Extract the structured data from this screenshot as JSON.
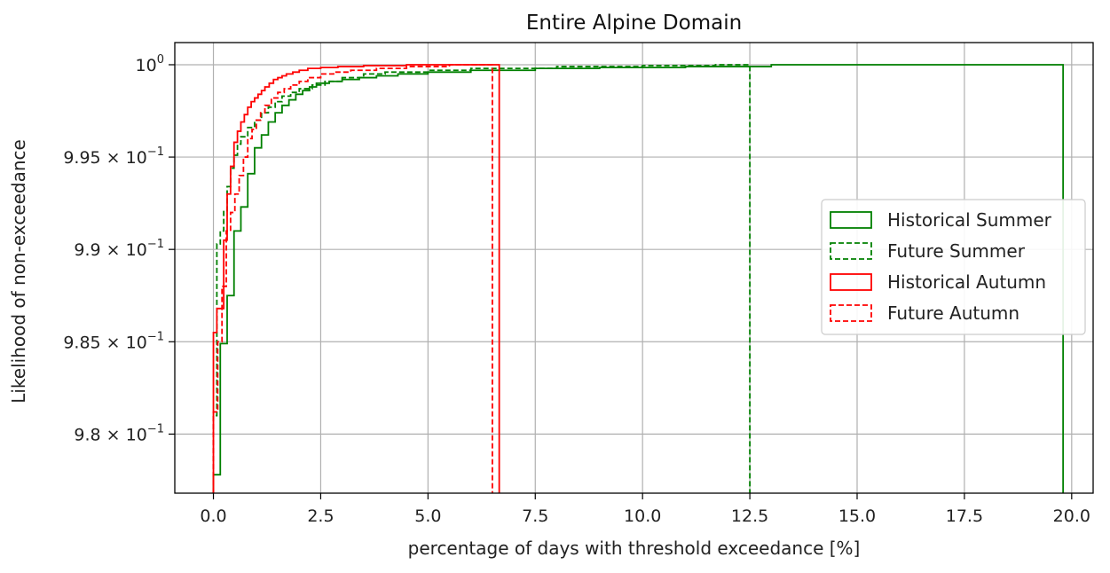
{
  "chart_data": {
    "type": "line",
    "subtype": "step-cdf-histogram",
    "title": "Entire Alpine Domain",
    "xlabel": "percentage of days with threshold exceedance [%]",
    "ylabel": "Likelihood of non-exceedance",
    "xlim": [
      -0.9,
      20.5
    ],
    "ylim": [
      0.9768,
      1.0012
    ],
    "x_ticks": [
      0,
      2.5,
      5,
      7.5,
      10,
      12.5,
      15,
      17.5,
      20
    ],
    "x_tick_labels": [
      "0.0",
      "2.5",
      "5.0",
      "7.5",
      "10.0",
      "12.5",
      "15.0",
      "17.5",
      "20.0"
    ],
    "y_ticks": [
      {
        "value": 0.98,
        "mantissa": "9.8",
        "exponent": "−1"
      },
      {
        "value": 0.985,
        "mantissa": "9.85",
        "exponent": "−1"
      },
      {
        "value": 0.99,
        "mantissa": "9.9",
        "exponent": "−1"
      },
      {
        "value": 0.995,
        "mantissa": "9.95",
        "exponent": "−1"
      },
      {
        "value": 1.0,
        "mantissa": "10",
        "exponent": "0"
      }
    ],
    "grid": true,
    "legend_position": "center-right",
    "series": [
      {
        "name": "Historical Summer",
        "color": "#008000",
        "dash": false,
        "x": [
          0,
          0.16,
          0.32,
          0.48,
          0.64,
          0.8,
          0.96,
          1.12,
          1.28,
          1.44,
          1.6,
          1.76,
          1.92,
          2.08,
          2.24,
          2.4,
          2.7,
          3.0,
          3.4,
          3.8,
          4.3,
          5.0,
          6.0,
          7.5,
          9.0,
          11.0,
          13.0,
          19.8
        ],
        "y": [
          0.9778,
          0.9849,
          0.9875,
          0.991,
          0.9923,
          0.9941,
          0.9955,
          0.9962,
          0.9969,
          0.9974,
          0.9978,
          0.9981,
          0.9984,
          0.9986,
          0.9988,
          0.999,
          0.9991,
          0.9992,
          0.9993,
          0.9994,
          0.9995,
          0.9996,
          0.9997,
          0.9998,
          0.99985,
          0.9999,
          1.0,
          1.0
        ]
      },
      {
        "name": "Future Summer",
        "color": "#008000",
        "dash": true,
        "x": [
          0,
          0.08,
          0.16,
          0.24,
          0.32,
          0.4,
          0.48,
          0.56,
          0.64,
          0.8,
          0.96,
          1.12,
          1.28,
          1.44,
          1.6,
          1.8,
          2.0,
          2.3,
          2.6,
          3.0,
          3.5,
          4.0,
          5.0,
          6.0,
          8.0,
          10.0,
          11.7,
          12.5
        ],
        "y": [
          0.981,
          0.9903,
          0.991,
          0.9921,
          0.9934,
          0.9944,
          0.9951,
          0.9957,
          0.9961,
          0.9966,
          0.997,
          0.9974,
          0.9977,
          0.998,
          0.9983,
          0.9985,
          0.9987,
          0.9989,
          0.9991,
          0.9993,
          0.9995,
          0.9996,
          0.9997,
          0.9998,
          0.9999,
          0.99995,
          1.0,
          1.0
        ]
      },
      {
        "name": "Historical Autumn",
        "color": "#ff0000",
        "dash": false,
        "x": [
          0,
          0.08,
          0.16,
          0.24,
          0.32,
          0.4,
          0.48,
          0.56,
          0.64,
          0.72,
          0.8,
          0.88,
          0.96,
          1.04,
          1.12,
          1.2,
          1.3,
          1.4,
          1.5,
          1.6,
          1.7,
          1.85,
          2.0,
          2.2,
          2.5,
          2.9,
          3.5,
          4.5,
          6.0,
          6.66
        ],
        "y": [
          0.9855,
          0.9868,
          0.9868,
          0.9905,
          0.993,
          0.9945,
          0.9958,
          0.9964,
          0.9969,
          0.9973,
          0.9977,
          0.998,
          0.9982,
          0.9984,
          0.9986,
          0.9988,
          0.999,
          0.9992,
          0.9993,
          0.9994,
          0.9995,
          0.9996,
          0.9997,
          0.9998,
          0.99985,
          0.9999,
          0.99995,
          1.0,
          1.0,
          1.0
        ]
      },
      {
        "name": "Future Autumn",
        "color": "#ff0000",
        "dash": true,
        "x": [
          0,
          0.1,
          0.2,
          0.3,
          0.4,
          0.5,
          0.6,
          0.7,
          0.8,
          0.9,
          1.0,
          1.1,
          1.2,
          1.35,
          1.5,
          1.65,
          1.8,
          2.0,
          2.2,
          2.5,
          2.8,
          3.2,
          3.8,
          4.5,
          5.5,
          6.5
        ],
        "y": [
          0.9812,
          0.985,
          0.988,
          0.991,
          0.992,
          0.993,
          0.994,
          0.995,
          0.996,
          0.9965,
          0.997,
          0.9974,
          0.9978,
          0.9982,
          0.9985,
          0.9987,
          0.9989,
          0.9991,
          0.9993,
          0.9995,
          0.9996,
          0.9997,
          0.9998,
          0.9999,
          1.0,
          1.0
        ]
      }
    ]
  }
}
